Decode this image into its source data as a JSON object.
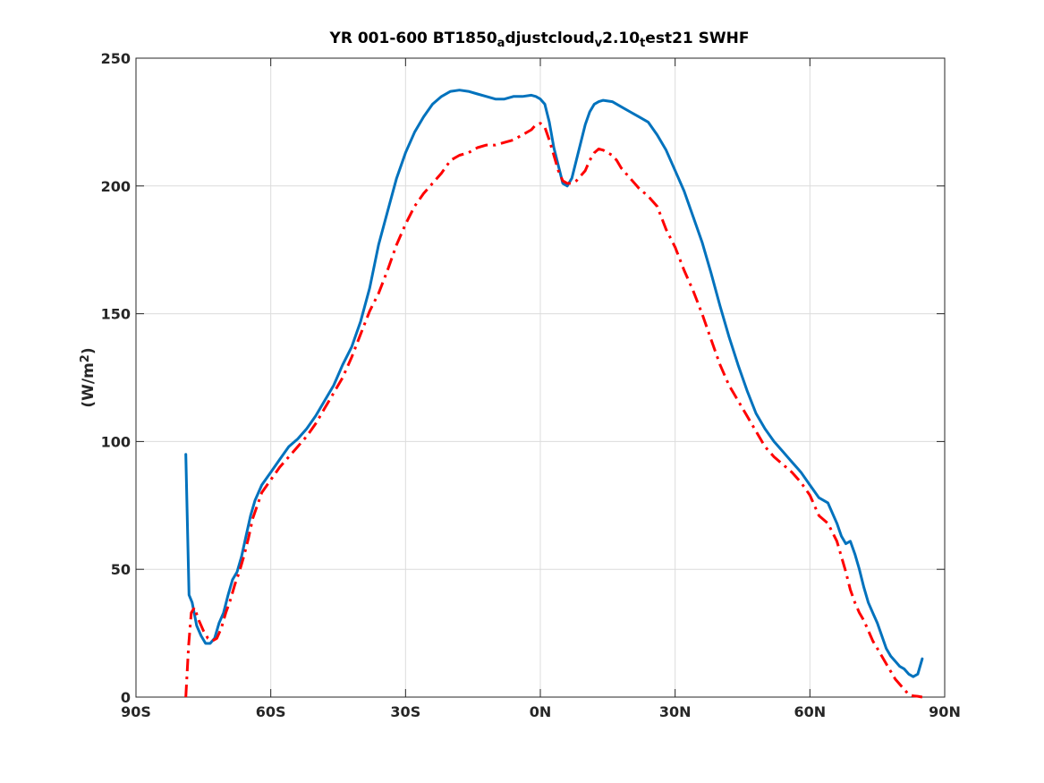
{
  "chart_data": {
    "type": "line",
    "title_parts": [
      {
        "text": "YR 001-600 BT1850",
        "sub": false
      },
      {
        "text": "a",
        "sub": true
      },
      {
        "text": "djustcloud",
        "sub": false
      },
      {
        "text": "v",
        "sub": true
      },
      {
        "text": "2.10",
        "sub": false
      },
      {
        "text": "t",
        "sub": true
      },
      {
        "text": "est21    SWHF",
        "sub": false
      }
    ],
    "ylabel_main": "(W/m",
    "ylabel_sup": "2",
    "ylabel_end": ")",
    "xlim": [
      -90,
      90
    ],
    "ylim": [
      0,
      250
    ],
    "x_ticks": [
      {
        "value": -90,
        "label": "90S"
      },
      {
        "value": -60,
        "label": "60S"
      },
      {
        "value": -30,
        "label": "30S"
      },
      {
        "value": 0,
        "label": "0N"
      },
      {
        "value": 30,
        "label": "30N"
      },
      {
        "value": 60,
        "label": "60N"
      },
      {
        "value": 90,
        "label": "90N"
      }
    ],
    "y_ticks": [
      {
        "value": 0,
        "label": "0"
      },
      {
        "value": 50,
        "label": "50"
      },
      {
        "value": 100,
        "label": "100"
      },
      {
        "value": 150,
        "label": "150"
      },
      {
        "value": 200,
        "label": "200"
      },
      {
        "value": 250,
        "label": "250"
      }
    ],
    "grid": true,
    "series": [
      {
        "color": "#0072bd",
        "style": "solid",
        "points": [
          [
            -78.9,
            95
          ],
          [
            -78.2,
            40
          ],
          [
            -77.5,
            37
          ],
          [
            -76.5,
            28
          ],
          [
            -75.5,
            24
          ],
          [
            -74.5,
            21
          ],
          [
            -73.5,
            21
          ],
          [
            -72.5,
            23
          ],
          [
            -71.5,
            29
          ],
          [
            -70.5,
            33
          ],
          [
            -69.5,
            40
          ],
          [
            -68.5,
            46
          ],
          [
            -67.5,
            49
          ],
          [
            -66.5,
            55
          ],
          [
            -65.5,
            63
          ],
          [
            -64.5,
            71
          ],
          [
            -63.5,
            77
          ],
          [
            -62,
            83
          ],
          [
            -60,
            88
          ],
          [
            -58,
            93
          ],
          [
            -56,
            98
          ],
          [
            -54,
            101
          ],
          [
            -52,
            105
          ],
          [
            -50,
            110
          ],
          [
            -48,
            116
          ],
          [
            -46,
            122
          ],
          [
            -44,
            130
          ],
          [
            -42,
            137
          ],
          [
            -40,
            147
          ],
          [
            -38,
            160
          ],
          [
            -36,
            177
          ],
          [
            -34,
            190
          ],
          [
            -32,
            203
          ],
          [
            -30,
            213
          ],
          [
            -28,
            221
          ],
          [
            -26,
            227
          ],
          [
            -24,
            232
          ],
          [
            -22,
            235
          ],
          [
            -20,
            237
          ],
          [
            -18,
            237.5
          ],
          [
            -16,
            237
          ],
          [
            -14,
            236
          ],
          [
            -12,
            235
          ],
          [
            -10,
            234
          ],
          [
            -8,
            234
          ],
          [
            -6,
            235
          ],
          [
            -4,
            235
          ],
          [
            -2,
            235.5
          ],
          [
            -1,
            235
          ],
          [
            0,
            234
          ],
          [
            1,
            232
          ],
          [
            2,
            225
          ],
          [
            3,
            215
          ],
          [
            4,
            208
          ],
          [
            5,
            201
          ],
          [
            6,
            200
          ],
          [
            7,
            203
          ],
          [
            8,
            210
          ],
          [
            9,
            217
          ],
          [
            10,
            224
          ],
          [
            11,
            229
          ],
          [
            12,
            232
          ],
          [
            13,
            233
          ],
          [
            14,
            233.5
          ],
          [
            16,
            233
          ],
          [
            18,
            231
          ],
          [
            20,
            229
          ],
          [
            22,
            227
          ],
          [
            24,
            225
          ],
          [
            26,
            220
          ],
          [
            28,
            214
          ],
          [
            30,
            206
          ],
          [
            32,
            198
          ],
          [
            34,
            188
          ],
          [
            36,
            178
          ],
          [
            38,
            166
          ],
          [
            40,
            153
          ],
          [
            42,
            141
          ],
          [
            44,
            130
          ],
          [
            46,
            120
          ],
          [
            48,
            111
          ],
          [
            50,
            105
          ],
          [
            52,
            100
          ],
          [
            54,
            96
          ],
          [
            56,
            92
          ],
          [
            58,
            88
          ],
          [
            60,
            83
          ],
          [
            62,
            78
          ],
          [
            64,
            76
          ],
          [
            66,
            68
          ],
          [
            67,
            63
          ],
          [
            68,
            60
          ],
          [
            69,
            61
          ],
          [
            70,
            56
          ],
          [
            71,
            50
          ],
          [
            72,
            43
          ],
          [
            73,
            37
          ],
          [
            74,
            33
          ],
          [
            75,
            29
          ],
          [
            76,
            24
          ],
          [
            77,
            19
          ],
          [
            78,
            16
          ],
          [
            79,
            14
          ],
          [
            80,
            12
          ],
          [
            81,
            11
          ],
          [
            82,
            9
          ],
          [
            83,
            8
          ],
          [
            84,
            9
          ],
          [
            85,
            15
          ]
        ]
      },
      {
        "color": "#ff0000",
        "style": "dashdot",
        "points": [
          [
            -78.9,
            0
          ],
          [
            -78.3,
            20
          ],
          [
            -77.7,
            33
          ],
          [
            -77,
            35
          ],
          [
            -76,
            30
          ],
          [
            -75,
            26
          ],
          [
            -74,
            23
          ],
          [
            -73,
            22
          ],
          [
            -72,
            23
          ],
          [
            -71,
            27
          ],
          [
            -70,
            33
          ],
          [
            -69,
            38
          ],
          [
            -68,
            44
          ],
          [
            -67,
            49
          ],
          [
            -66,
            55
          ],
          [
            -65,
            62
          ],
          [
            -64,
            70
          ],
          [
            -63,
            75
          ],
          [
            -62,
            80
          ],
          [
            -60,
            85
          ],
          [
            -58,
            90
          ],
          [
            -56,
            94
          ],
          [
            -54,
            98
          ],
          [
            -52,
            102
          ],
          [
            -50,
            107
          ],
          [
            -48,
            113
          ],
          [
            -46,
            119
          ],
          [
            -44,
            125
          ],
          [
            -42,
            133
          ],
          [
            -40,
            142
          ],
          [
            -38,
            151
          ],
          [
            -36,
            158
          ],
          [
            -34,
            167
          ],
          [
            -32,
            177
          ],
          [
            -30,
            185
          ],
          [
            -28,
            192
          ],
          [
            -26,
            197
          ],
          [
            -24,
            201
          ],
          [
            -22,
            205
          ],
          [
            -20,
            210
          ],
          [
            -18,
            212
          ],
          [
            -16,
            213
          ],
          [
            -14,
            215
          ],
          [
            -12,
            216
          ],
          [
            -10,
            216
          ],
          [
            -8,
            217
          ],
          [
            -6,
            218
          ],
          [
            -4,
            220
          ],
          [
            -2,
            222
          ],
          [
            -1,
            224
          ],
          [
            0,
            224.5
          ],
          [
            1,
            223
          ],
          [
            2,
            218
          ],
          [
            3,
            212
          ],
          [
            4,
            206
          ],
          [
            5,
            202
          ],
          [
            6,
            201
          ],
          [
            7,
            201
          ],
          [
            8,
            202
          ],
          [
            9,
            204
          ],
          [
            10,
            206
          ],
          [
            11,
            210
          ],
          [
            12,
            213
          ],
          [
            13,
            214.5
          ],
          [
            14,
            214
          ],
          [
            15,
            213
          ],
          [
            16,
            212
          ],
          [
            17,
            210
          ],
          [
            18,
            207
          ],
          [
            20,
            203
          ],
          [
            22,
            199
          ],
          [
            24,
            196
          ],
          [
            26,
            192
          ],
          [
            28,
            183
          ],
          [
            30,
            176
          ],
          [
            32,
            167
          ],
          [
            34,
            159
          ],
          [
            36,
            150
          ],
          [
            38,
            140
          ],
          [
            40,
            130
          ],
          [
            42,
            122
          ],
          [
            44,
            116
          ],
          [
            46,
            110
          ],
          [
            48,
            104
          ],
          [
            50,
            98
          ],
          [
            52,
            94
          ],
          [
            54,
            91
          ],
          [
            56,
            88
          ],
          [
            58,
            84
          ],
          [
            60,
            79
          ],
          [
            62,
            71
          ],
          [
            64,
            68
          ],
          [
            66,
            61
          ],
          [
            67,
            55
          ],
          [
            68,
            49
          ],
          [
            69,
            42
          ],
          [
            70,
            37
          ],
          [
            71,
            33
          ],
          [
            72,
            30
          ],
          [
            73,
            26
          ],
          [
            74,
            22
          ],
          [
            75,
            19
          ],
          [
            76,
            16
          ],
          [
            77,
            13
          ],
          [
            78,
            10
          ],
          [
            79,
            7
          ],
          [
            80,
            5
          ],
          [
            81,
            3
          ],
          [
            82,
            1
          ],
          [
            83,
            0.5
          ],
          [
            84,
            0.3
          ],
          [
            85,
            0
          ]
        ]
      }
    ]
  }
}
